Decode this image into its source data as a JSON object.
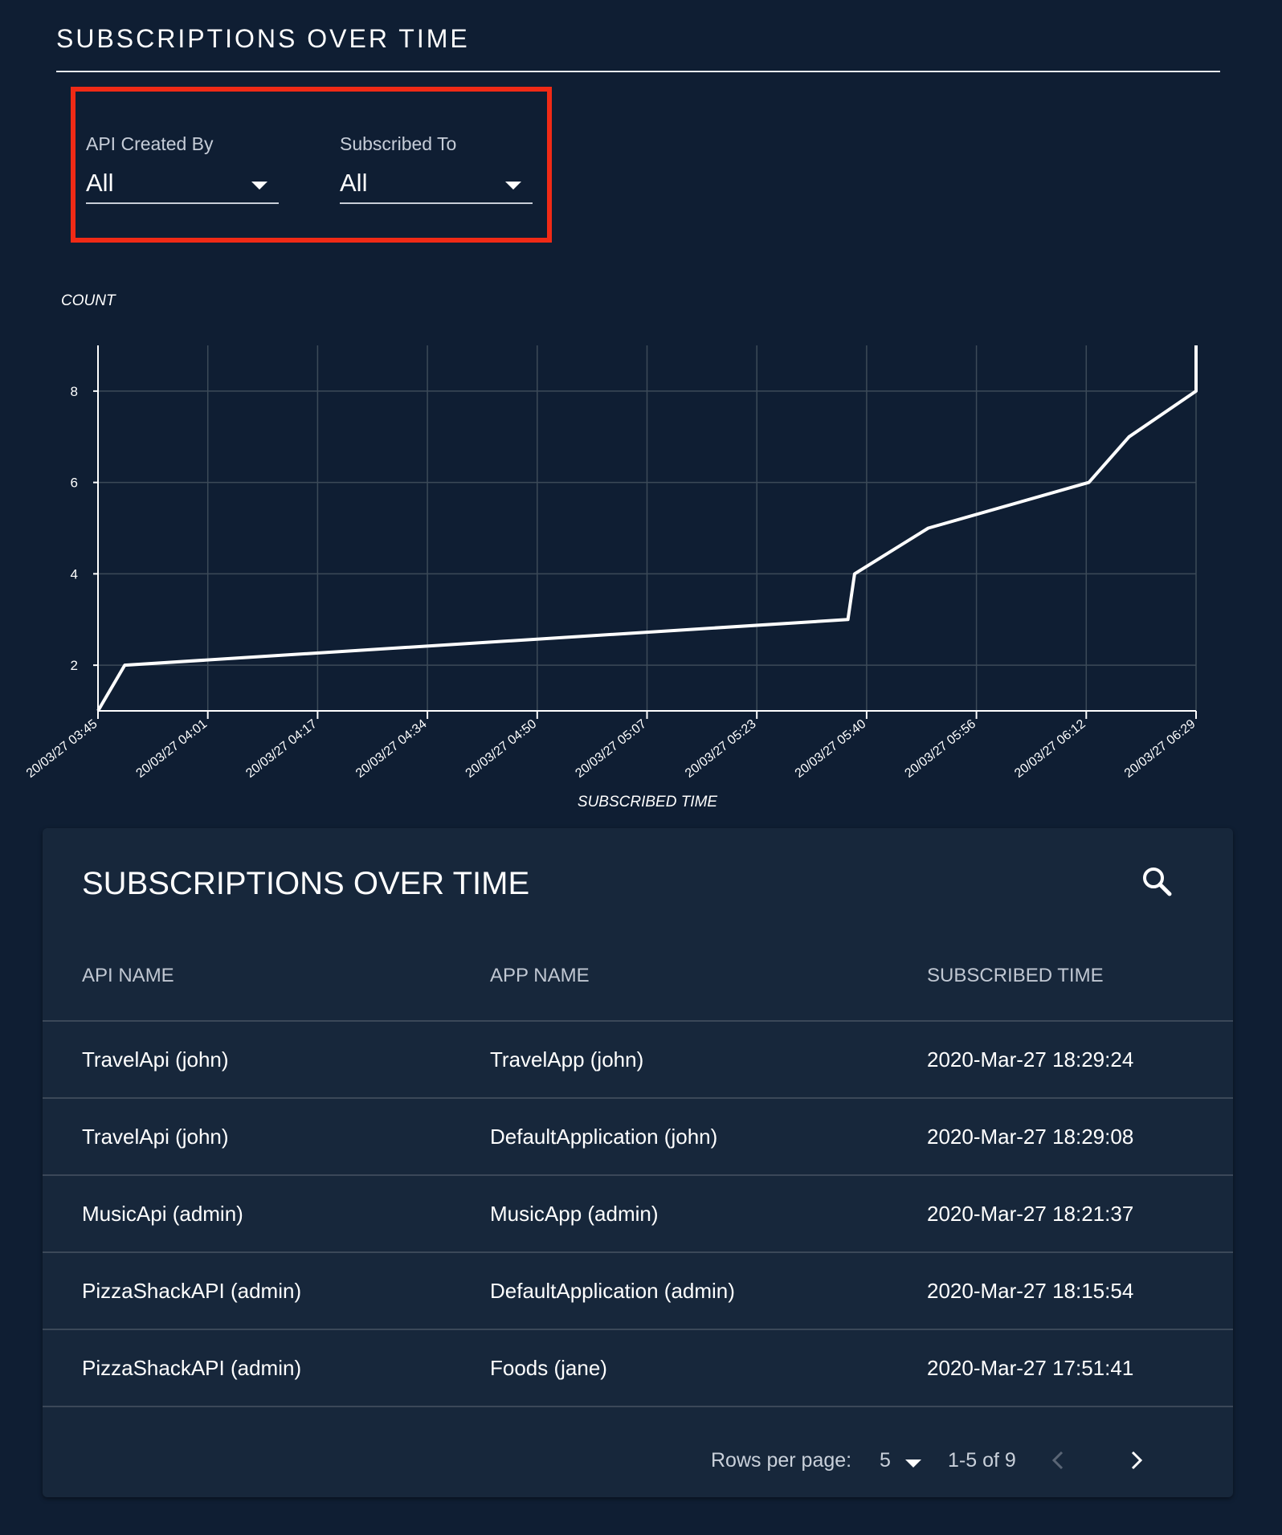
{
  "page": {
    "title": "SUBSCRIPTIONS OVER TIME"
  },
  "filters": {
    "api_created_by": {
      "label": "API Created By",
      "value": "All"
    },
    "subscribed_to": {
      "label": "Subscribed To",
      "value": "All"
    }
  },
  "colors": {
    "background": "#0f1e33",
    "card": "#17273b",
    "highlight": "#f02a16",
    "line": "#ffffff",
    "grid": "#3c4a58"
  },
  "chart_data": {
    "type": "line",
    "ylabel": "COUNT",
    "xlabel": "SUBSCRIBED TIME",
    "grid": true,
    "ylim": [
      1,
      9
    ],
    "y_ticks": [
      2,
      4,
      6,
      8
    ],
    "x_tick_labels": [
      "20/03/27 03:45",
      "20/03/27 04:01",
      "20/03/27 04:17",
      "20/03/27 04:34",
      "20/03/27 04:50",
      "20/03/27 05:07",
      "20/03/27 05:23",
      "20/03/27 05:40",
      "20/03/27 05:56",
      "20/03/27 06:12",
      "20/03/27 06:29"
    ],
    "xlim": [
      "20/03/27 03:45",
      "20/03/27 06:29"
    ],
    "series": [
      {
        "x": [
          "20/03/27 03:45",
          "20/03/27 03:49",
          "20/03/27 05:37",
          "20/03/27 05:38",
          "20/03/27 05:49",
          "20/03/27 06:13",
          "20/03/27 06:19",
          "20/03/27 06:29",
          "20/03/27 06:29"
        ],
        "y": [
          1,
          2,
          3,
          4,
          5,
          6,
          7,
          8,
          9
        ]
      }
    ]
  },
  "table": {
    "title": "SUBSCRIPTIONS OVER TIME",
    "columns": [
      "API NAME",
      "APP NAME",
      "SUBSCRIBED TIME"
    ],
    "rows": [
      [
        "TravelApi (john)",
        "TravelApp (john)",
        "2020-Mar-27 18:29:24"
      ],
      [
        "TravelApi (john)",
        "DefaultApplication (john)",
        "2020-Mar-27 18:29:08"
      ],
      [
        "MusicApi (admin)",
        "MusicApp (admin)",
        "2020-Mar-27 18:21:37"
      ],
      [
        "PizzaShackAPI (admin)",
        "DefaultApplication (admin)",
        "2020-Mar-27 18:15:54"
      ],
      [
        "PizzaShackAPI (admin)",
        "Foods (jane)",
        "2020-Mar-27 17:51:41"
      ]
    ],
    "pagination": {
      "rows_per_page_label": "Rows per page:",
      "rows_per_page_value": "5",
      "range": "1-5 of 9"
    }
  }
}
